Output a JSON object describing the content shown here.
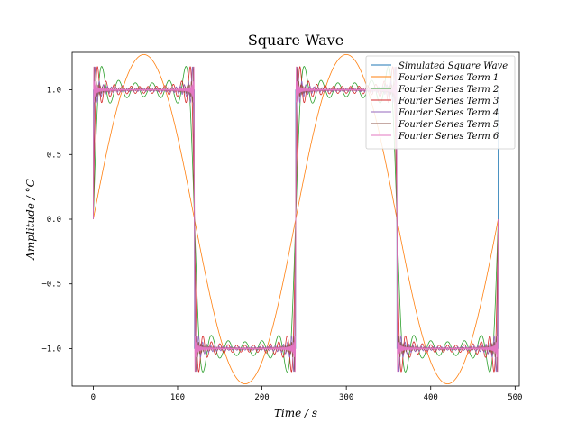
{
  "chart_data": {
    "type": "line",
    "title": "Square Wave",
    "xlabel": "Time / s",
    "ylabel": "Amplitude / °C",
    "xlim": [
      -25,
      505
    ],
    "ylim": [
      -1.29,
      1.29
    ],
    "xticks": [
      0,
      100,
      200,
      300,
      400,
      500
    ],
    "yticks": [
      -1.0,
      -0.5,
      0.0,
      0.5,
      1.0
    ],
    "xtick_labels": [
      "0",
      "100",
      "200",
      "300",
      "400",
      "500"
    ],
    "ytick_labels": [
      "−1.0",
      "−0.5",
      "0.0",
      "0.5",
      "1.0"
    ],
    "period": 240,
    "amplitude": 1.0,
    "x_range": [
      0,
      480
    ],
    "overshoot_peak": 1.18,
    "legend_position": "top-right",
    "grid": false,
    "series": [
      {
        "name": "Simulated Square Wave",
        "color": "#1f77b4"
      },
      {
        "name": "Fourier Series Term 1",
        "color": "#ff7f0e"
      },
      {
        "name": "Fourier Series Term 2",
        "color": "#2ca02c"
      },
      {
        "name": "Fourier Series Term 3",
        "color": "#d62728"
      },
      {
        "name": "Fourier Series Term 4",
        "color": "#9467bd"
      },
      {
        "name": "Fourier Series Term 5",
        "color": "#8c564b"
      },
      {
        "name": "Fourier Series Term 6",
        "color": "#e377c2"
      }
    ]
  }
}
